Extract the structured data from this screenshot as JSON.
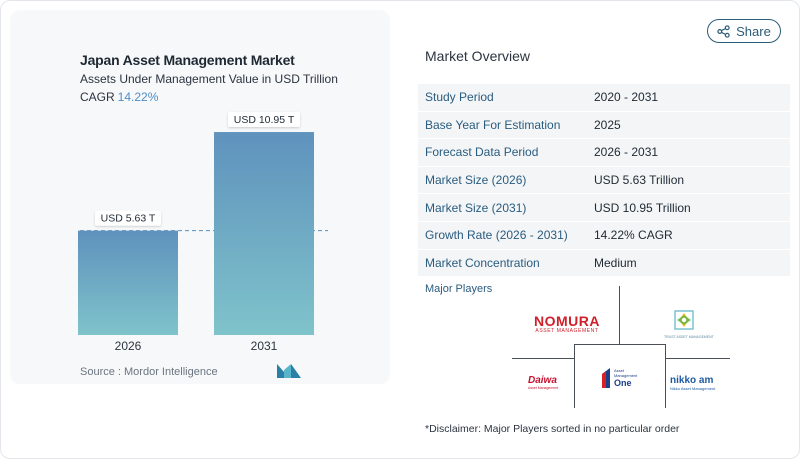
{
  "share": {
    "label": "Share"
  },
  "chart": {
    "title": "Japan Asset Management Market",
    "subtitle": "Assets Under Management Value in USD Trillion",
    "cagr_label": "CAGR",
    "cagr_value": "14.22%",
    "source": "Source :  Mordor Intelligence"
  },
  "chart_data": {
    "type": "bar",
    "categories": [
      "2026",
      "2031"
    ],
    "values": [
      5.63,
      10.95
    ],
    "data_labels": [
      "USD 5.63 T",
      "USD 10.95 T"
    ],
    "title": "Japan Asset Management Market",
    "subtitle": "Assets Under Management Value in USD Trillion",
    "ylim": [
      0,
      11.6
    ],
    "grid": false,
    "reference_line": "dashed line at 2026 value",
    "bar_gradient": [
      "#5f92bd",
      "#7fc3cb"
    ]
  },
  "overview": {
    "title": "Market Overview",
    "rows": [
      {
        "label": "Study Period",
        "value": "2020 - 2031"
      },
      {
        "label": "Base Year For Estimation",
        "value": "2025"
      },
      {
        "label": "Forecast Data Period",
        "value": "2026 - 2031"
      },
      {
        "label": "Market Size (2026)",
        "value": "USD 5.63 Trillion"
      },
      {
        "label": "Market Size (2031)",
        "value": "USD 10.95 Trillion"
      },
      {
        "label": "Growth Rate (2026 - 2031)",
        "value": "14.22% CAGR"
      },
      {
        "label": "Market Concentration",
        "value": "Medium"
      }
    ]
  },
  "players": {
    "title": "Major Players",
    "nomura_main": "NOMURA",
    "nomura_sub": "ASSET MANAGEMENT",
    "trust_sub": "TRUST ASSET MANAGEMENT",
    "daiwa_main": "Daiwa",
    "daiwa_sub": "Asset Management",
    "am_one_small": "Asset Management",
    "am_one_big": "One",
    "nikko_main": "nikko am",
    "nikko_sub": "Nikko Asset Management"
  },
  "disclaimer": "*Disclaimer: Major Players sorted in no particular order",
  "colors": {
    "accent": "#2a5c7f",
    "cagr": "#4f8ec7",
    "nomura_red": "#d0202a",
    "daiwa_red": "#c8102e",
    "nikko_blue": "#1c5aa0",
    "nikko_yellow": "#e7a21a"
  }
}
